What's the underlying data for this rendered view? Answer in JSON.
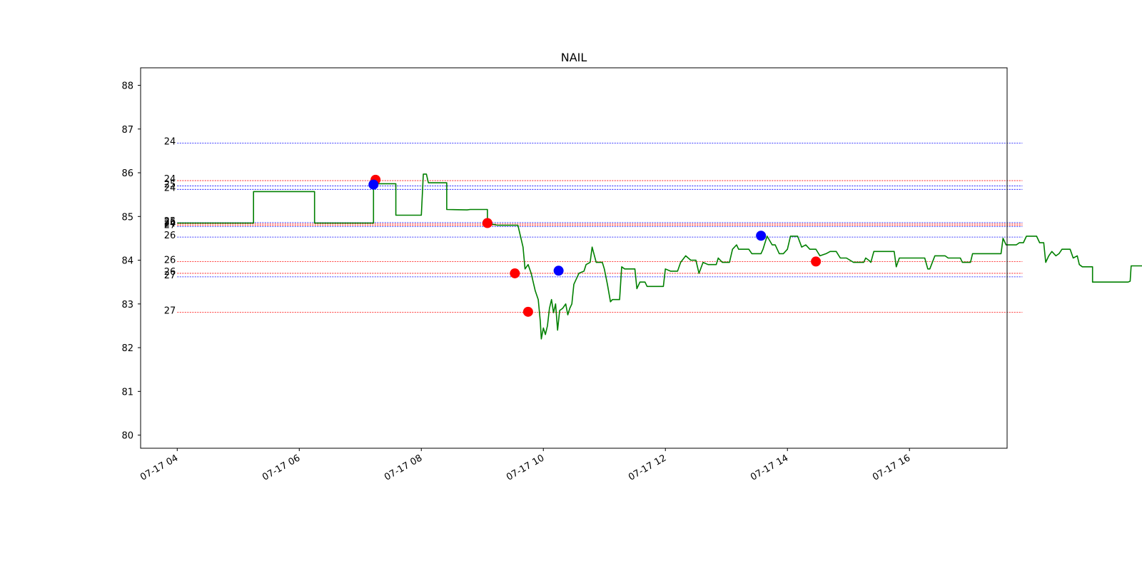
{
  "chart_data": {
    "type": "line",
    "title": "NAIL",
    "xlabel": "",
    "ylabel": "",
    "x_tick_labels": [
      "07-17 04",
      "07-17 06",
      "07-17 08",
      "07-17 10",
      "07-17 12",
      "07-17 14",
      "07-17 16"
    ],
    "x_tick_hours": [
      4,
      6,
      8,
      10,
      12,
      14,
      16
    ],
    "xlim": [
      "07-17 03:24",
      "07-17 17:36"
    ],
    "y_ticks": [
      80,
      81,
      82,
      83,
      84,
      85,
      86,
      87,
      88
    ],
    "ylim": [
      79.7,
      88.4
    ],
    "grid": false,
    "colors": {
      "price": "#008000",
      "buy": "#ff0000",
      "sell": "#0000ff"
    },
    "series": [
      {
        "points": [
          [
            "04:00",
            84.85
          ],
          [
            "05:15",
            84.85
          ],
          [
            "05:15",
            85.57
          ],
          [
            "06:15",
            85.57
          ],
          [
            "06:15",
            84.85
          ],
          [
            "07:13",
            84.85
          ],
          [
            "07:13",
            85.75
          ],
          [
            "07:35",
            85.75
          ],
          [
            "07:35",
            85.03
          ],
          [
            "08:00",
            85.03
          ],
          [
            "08:02",
            85.97
          ],
          [
            "08:05",
            85.97
          ],
          [
            "08:07",
            85.77
          ],
          [
            "08:25",
            85.77
          ],
          [
            "08:25",
            85.16
          ],
          [
            "08:45",
            85.15
          ],
          [
            "08:48",
            85.16
          ],
          [
            "09:05",
            85.16
          ],
          [
            "09:05",
            84.85
          ],
          [
            "09:15",
            84.8
          ],
          [
            "09:35",
            84.8
          ],
          [
            "09:40",
            84.3
          ],
          [
            "09:42",
            83.8
          ],
          [
            "09:45",
            83.9
          ],
          [
            "09:48",
            83.7
          ],
          [
            "09:52",
            83.3
          ],
          [
            "09:55",
            83.1
          ],
          [
            "09:57",
            82.6
          ],
          [
            "09:58",
            82.2
          ],
          [
            "10:00",
            82.45
          ],
          [
            "10:02",
            82.3
          ],
          [
            "10:04",
            82.5
          ],
          [
            "10:06",
            82.9
          ],
          [
            "10:08",
            83.1
          ],
          [
            "10:10",
            82.8
          ],
          [
            "10:12",
            83.0
          ],
          [
            "10:14",
            82.4
          ],
          [
            "10:16",
            82.85
          ],
          [
            "10:19",
            82.9
          ],
          [
            "10:22",
            83.0
          ],
          [
            "10:24",
            82.75
          ],
          [
            "10:26",
            82.9
          ],
          [
            "10:28",
            83.0
          ],
          [
            "10:30",
            83.45
          ],
          [
            "10:35",
            83.7
          ],
          [
            "10:40",
            83.75
          ],
          [
            "10:42",
            83.9
          ],
          [
            "10:46",
            83.95
          ],
          [
            "10:48",
            84.3
          ],
          [
            "10:52",
            83.95
          ],
          [
            "10:58",
            83.95
          ],
          [
            "11:00",
            83.8
          ],
          [
            "11:03",
            83.45
          ],
          [
            "11:06",
            83.05
          ],
          [
            "11:08",
            83.1
          ],
          [
            "11:15",
            83.1
          ],
          [
            "11:17",
            83.85
          ],
          [
            "11:20",
            83.8
          ],
          [
            "11:30",
            83.8
          ],
          [
            "11:32",
            83.35
          ],
          [
            "11:35",
            83.5
          ],
          [
            "11:40",
            83.5
          ],
          [
            "11:42",
            83.4
          ],
          [
            "11:58",
            83.4
          ],
          [
            "12:00",
            83.8
          ],
          [
            "12:05",
            83.75
          ],
          [
            "12:12",
            83.75
          ],
          [
            "12:15",
            83.95
          ],
          [
            "12:20",
            84.1
          ],
          [
            "12:25",
            84.0
          ],
          [
            "12:30",
            84.0
          ],
          [
            "12:33",
            83.7
          ],
          [
            "12:37",
            83.95
          ],
          [
            "12:42",
            83.9
          ],
          [
            "12:50",
            83.9
          ],
          [
            "12:52",
            84.05
          ],
          [
            "12:56",
            83.95
          ],
          [
            "13:03",
            83.95
          ],
          [
            "13:06",
            84.25
          ],
          [
            "13:10",
            84.35
          ],
          [
            "13:12",
            84.25
          ],
          [
            "13:22",
            84.25
          ],
          [
            "13:25",
            84.15
          ],
          [
            "13:34",
            84.15
          ],
          [
            "13:36",
            84.25
          ],
          [
            "13:40",
            84.55
          ],
          [
            "13:45",
            84.35
          ],
          [
            "13:48",
            84.35
          ],
          [
            "13:52",
            84.15
          ],
          [
            "13:56",
            84.15
          ],
          [
            "14:00",
            84.25
          ],
          [
            "14:03",
            84.55
          ],
          [
            "14:10",
            84.55
          ],
          [
            "14:14",
            84.3
          ],
          [
            "14:18",
            84.35
          ],
          [
            "14:22",
            84.25
          ],
          [
            "14:28",
            84.25
          ],
          [
            "14:32",
            84.1
          ],
          [
            "14:38",
            84.15
          ],
          [
            "14:42",
            84.2
          ],
          [
            "14:48",
            84.2
          ],
          [
            "14:52",
            84.05
          ],
          [
            "14:58",
            84.05
          ],
          [
            "15:05",
            83.95
          ],
          [
            "15:15",
            83.95
          ],
          [
            "15:17",
            84.05
          ],
          [
            "15:20",
            84.0
          ],
          [
            "15:22",
            83.95
          ],
          [
            "15:25",
            84.2
          ],
          [
            "15:40",
            84.2
          ],
          [
            "15:45",
            84.2
          ],
          [
            "15:47",
            83.85
          ],
          [
            "15:50",
            84.05
          ],
          [
            "15:55",
            84.05
          ],
          [
            "16:15",
            84.05
          ],
          [
            "16:18",
            83.8
          ],
          [
            "16:20",
            83.8
          ],
          [
            "16:25",
            84.1
          ],
          [
            "16:35",
            84.1
          ],
          [
            "16:38",
            84.05
          ],
          [
            "16:50",
            84.05
          ],
          [
            "16:52",
            83.95
          ],
          [
            "17:00",
            83.95
          ],
          [
            "17:02",
            84.15
          ],
          [
            "17:30",
            84.15
          ],
          [
            "17:32",
            84.5
          ],
          [
            "17:35",
            84.35
          ],
          [
            "17:45",
            84.35
          ],
          [
            "17:48",
            84.4
          ],
          [
            "17:52",
            84.4
          ],
          [
            "17:55",
            84.55
          ],
          [
            "18:05",
            84.55
          ],
          [
            "18:08",
            84.4
          ],
          [
            "18:12",
            84.4
          ],
          [
            "18:14",
            83.95
          ],
          [
            "18:17",
            84.1
          ],
          [
            "18:20",
            84.2
          ],
          [
            "18:24",
            84.1
          ],
          [
            "18:27",
            84.15
          ],
          [
            "18:30",
            84.25
          ],
          [
            "18:38",
            84.25
          ],
          [
            "18:41",
            84.05
          ],
          [
            "18:45",
            84.1
          ],
          [
            "18:47",
            83.9
          ],
          [
            "18:50",
            83.85
          ],
          [
            "19:00",
            83.85
          ],
          [
            "19:00",
            83.5
          ],
          [
            "19:35",
            83.5
          ],
          [
            "19:37",
            83.52
          ],
          [
            "19:38",
            83.87
          ],
          [
            "19:55",
            83.87
          ]
        ]
      }
    ],
    "buy_markers": [
      [
        "07:15",
        85.84
      ],
      [
        "09:05",
        84.85
      ],
      [
        "09:32",
        83.7
      ],
      [
        "09:45",
        82.82
      ],
      [
        "14:28",
        83.97
      ]
    ],
    "sell_markers": [
      [
        "07:13",
        85.73
      ],
      [
        "10:15",
        83.76
      ],
      [
        "13:34",
        84.56
      ]
    ],
    "level_lines": [
      {
        "label": "24",
        "value": 86.68,
        "color": "#0000ff"
      },
      {
        "label": "24",
        "value": 85.82,
        "color": "#ff0000"
      },
      {
        "label": "25",
        "value": 85.7,
        "color": "#0000ff"
      },
      {
        "label": "24",
        "value": 85.62,
        "color": "#0000ff"
      },
      {
        "label": "25",
        "value": 84.86,
        "color": "#0000ff"
      },
      {
        "label": "26",
        "value": 84.83,
        "color": "#ff0000"
      },
      {
        "label": "24",
        "value": 84.8,
        "color": "#ff0000"
      },
      {
        "label": "27",
        "value": 84.77,
        "color": "#0000ff"
      },
      {
        "label": "26",
        "value": 84.53,
        "color": "#0000ff"
      },
      {
        "label": "26",
        "value": 83.97,
        "color": "#ff0000"
      },
      {
        "label": "26",
        "value": 83.7,
        "color": "#ff0000"
      },
      {
        "label": "27",
        "value": 83.62,
        "color": "#0000ff"
      },
      {
        "label": "27",
        "value": 82.81,
        "color": "#ff0000"
      }
    ]
  }
}
